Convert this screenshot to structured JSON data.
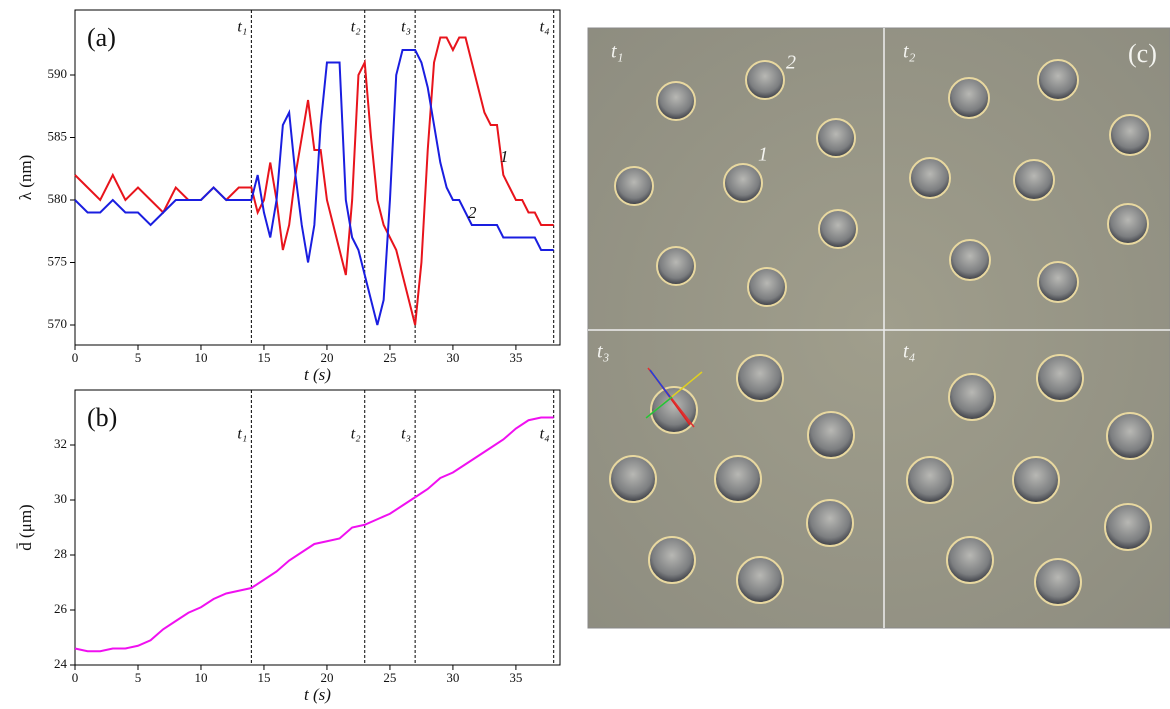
{
  "chart_data": [
    {
      "type": "line",
      "panel_label": "(a)",
      "x_label": "t (s)",
      "y_label": "λ (nm)",
      "xlim": [
        0,
        38.5
      ],
      "xticks": [
        0,
        5,
        10,
        15,
        20,
        25,
        30,
        35
      ],
      "ylim": [
        568.4,
        595.2
      ],
      "yticks": [
        570,
        575,
        580,
        585,
        590
      ],
      "markers": [
        {
          "x": 14,
          "label": "t₁"
        },
        {
          "x": 23,
          "label": "t₂"
        },
        {
          "x": 27,
          "label": "t₃"
        },
        {
          "x": 38,
          "label": "t₄"
        }
      ],
      "x": [
        0,
        1,
        2,
        3,
        4,
        5,
        6,
        7,
        8,
        9,
        10,
        11,
        12,
        13,
        14,
        14.5,
        15,
        15.5,
        16,
        16.5,
        17,
        17.5,
        18,
        18.5,
        19,
        19.5,
        20,
        20.5,
        21,
        21.5,
        22,
        22.5,
        23,
        23.5,
        24,
        24.5,
        25,
        25.5,
        26,
        26.5,
        27,
        27.5,
        28,
        28.5,
        29,
        29.5,
        30,
        30.5,
        31,
        31.5,
        32,
        32.5,
        33,
        33.5,
        34,
        34.5,
        35,
        35.5,
        36,
        36.5,
        37,
        37.5,
        38
      ],
      "series": [
        {
          "name": "1",
          "color": "#e8141c",
          "values": [
            582,
            581,
            580,
            582,
            580,
            581,
            580,
            579,
            581,
            580,
            580,
            581,
            580,
            581,
            581,
            579,
            580,
            583,
            580,
            576,
            578,
            582,
            585,
            588,
            584,
            584,
            580,
            578,
            576,
            574,
            580,
            590,
            591,
            585,
            580,
            578,
            577,
            576,
            574,
            572,
            570,
            575,
            584,
            591,
            593,
            593,
            592,
            593,
            593,
            591,
            589,
            587,
            586,
            586,
            582,
            581,
            580,
            580,
            579,
            579,
            578,
            578,
            578
          ]
        },
        {
          "name": "2",
          "color": "#1a1ee0",
          "values": [
            580,
            579,
            579,
            580,
            579,
            579,
            578,
            579,
            580,
            580,
            580,
            581,
            580,
            580,
            580,
            582,
            579,
            577,
            580,
            586,
            587,
            582,
            578,
            575,
            578,
            586,
            591,
            591,
            591,
            580,
            577,
            576,
            574,
            572,
            570,
            572,
            580,
            590,
            592,
            592,
            592,
            591,
            589,
            586,
            583,
            581,
            580,
            580,
            579,
            578,
            578,
            578,
            578,
            578,
            577,
            577,
            577,
            577,
            577,
            577,
            576,
            576,
            576
          ]
        }
      ]
    },
    {
      "type": "line",
      "panel_label": "(b)",
      "x_label": "t (s)",
      "y_label": "d̄ (μm)",
      "xlim": [
        0,
        38.5
      ],
      "xticks": [
        0,
        5,
        10,
        15,
        20,
        25,
        30,
        35
      ],
      "ylim": [
        24,
        34
      ],
      "yticks": [
        24,
        26,
        28,
        30,
        32
      ],
      "markers": [
        {
          "x": 14,
          "label": "t₁"
        },
        {
          "x": 23,
          "label": "t₂"
        },
        {
          "x": 27,
          "label": "t₃"
        },
        {
          "x": 38,
          "label": "t₄"
        }
      ],
      "x": [
        0,
        1,
        2,
        3,
        4,
        5,
        6,
        7,
        8,
        9,
        10,
        11,
        12,
        13,
        14,
        15,
        16,
        17,
        18,
        19,
        20,
        21,
        22,
        23,
        24,
        25,
        26,
        27,
        28,
        29,
        30,
        31,
        32,
        33,
        34,
        35,
        36,
        37,
        38
      ],
      "series": [
        {
          "color": "#f010f0",
          "values": [
            24.6,
            24.5,
            24.5,
            24.6,
            24.6,
            24.7,
            24.9,
            25.3,
            25.6,
            25.9,
            26.1,
            26.4,
            26.6,
            26.7,
            26.8,
            27.1,
            27.4,
            27.8,
            28.1,
            28.4,
            28.5,
            28.6,
            29.0,
            29.1,
            29.3,
            29.5,
            29.8,
            30.1,
            30.4,
            30.8,
            31.0,
            31.3,
            31.6,
            31.9,
            32.2,
            32.6,
            32.9,
            33.0,
            33.0
          ]
        }
      ]
    }
  ],
  "micrograph": {
    "panel_label": "(c)",
    "frame_labels": [
      "t₁",
      "t₂",
      "t₃",
      "t₄"
    ],
    "annotations": [
      "1",
      "2"
    ]
  }
}
